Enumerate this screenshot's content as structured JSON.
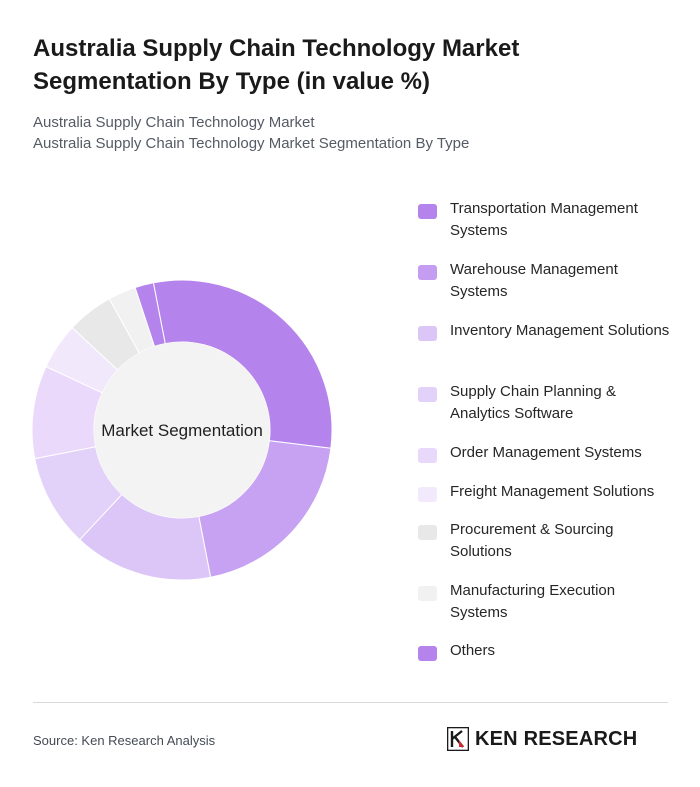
{
  "header": {
    "title_line1": "Australia Supply Chain Technology Market",
    "title_line2": "Segmentation By Type (in value %)",
    "subtitle_line1": "Australia Supply Chain Technology Market",
    "subtitle_line2": "Australia Supply Chain Technology Market Segmentation By Type"
  },
  "chart_data": {
    "type": "pie",
    "variant": "donut",
    "center_label": "Market Segmentation",
    "legend_position": "right",
    "categories": [
      "Transportation Management Systems",
      "Warehouse Management Systems",
      "Inventory Management Solutions",
      "Supply Chain Planning & Analytics Software",
      "Order Management Systems",
      "Freight Management Solutions",
      "Procurement & Sourcing Solutions",
      "Manufacturing Execution Systems",
      "Others"
    ],
    "values": [
      30,
      20,
      15,
      10,
      10,
      5,
      5,
      3,
      2
    ],
    "colors": [
      "#b583ec",
      "#c7a2f2",
      "#dcc5f7",
      "#e2d1f8",
      "#ead9fb",
      "#f1e8fc",
      "#e8e8e8",
      "#f1f1f1",
      "#b583ec"
    ],
    "legend_colors": [
      "#b583ec",
      "#c49cf1",
      "#dcc5f7",
      "#e2d1f8",
      "#e8d9fa",
      "#f2eafc",
      "#e8e8e8",
      "#f1f1f1",
      "#b583ec"
    ]
  },
  "footer": {
    "source": "Source: Ken Research Analysis",
    "brand": "KEN RESEARCH"
  }
}
